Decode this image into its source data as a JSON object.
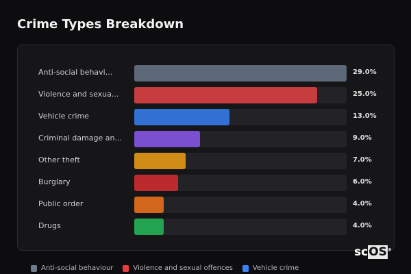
{
  "title": "Crime Types Breakdown",
  "chart_data": {
    "type": "bar",
    "orientation": "horizontal",
    "title": "Crime Types Breakdown",
    "categories": [
      "Anti-social behavi...",
      "Violence and sexua...",
      "Vehicle crime",
      "Criminal damage an...",
      "Other theft",
      "Burglary",
      "Public order",
      "Drugs"
    ],
    "values": [
      29.0,
      25.0,
      13.0,
      9.0,
      7.0,
      6.0,
      4.0,
      4.0
    ],
    "value_labels": [
      "29.0%",
      "25.0%",
      "13.0%",
      "9.0%",
      "7.0%",
      "6.0%",
      "4.0%",
      "4.0%"
    ],
    "colors": [
      "#5d6878",
      "#c73c3f",
      "#3370d4",
      "#7a4fd0",
      "#d18b17",
      "#bb2a2c",
      "#d2661a",
      "#22a34f"
    ],
    "xlim": [
      0,
      29
    ],
    "legend_position": "bottom",
    "legend": [
      {
        "name": "Anti-social behaviour",
        "color": "#6b7a8f"
      },
      {
        "name": "Violence and sexual offences",
        "color": "#e53e3e"
      },
      {
        "name": "Vehicle crime",
        "color": "#3b82f6"
      }
    ]
  },
  "logo": {
    "text_a": "sc",
    "text_b": "OS",
    "mark": "®"
  }
}
